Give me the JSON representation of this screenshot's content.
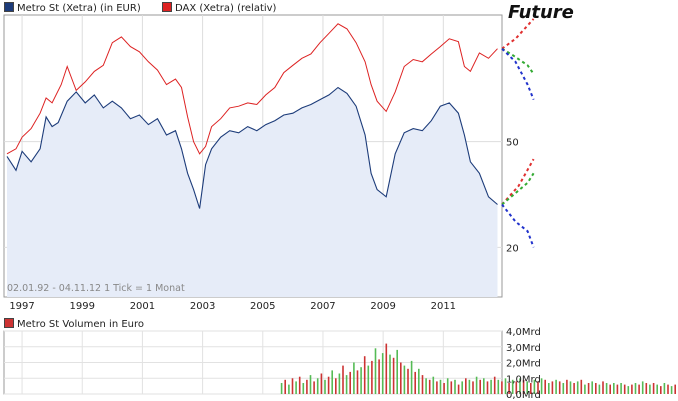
{
  "annotation": "Future",
  "chart_data": [
    {
      "type": "line",
      "title": "",
      "series": [
        {
          "name": "Metro St (Xetra) (in EUR)",
          "color": "#1d3c7a",
          "points": [
            [
              1996.5,
              44
            ],
            [
              1996.8,
              39
            ],
            [
              1997.0,
              46
            ],
            [
              1997.3,
              42
            ],
            [
              1997.6,
              47
            ],
            [
              1997.8,
              62
            ],
            [
              1998.0,
              57
            ],
            [
              1998.2,
              59
            ],
            [
              1998.5,
              71
            ],
            [
              1998.8,
              77
            ],
            [
              1999.1,
              70
            ],
            [
              1999.4,
              75
            ],
            [
              1999.7,
              67
            ],
            [
              2000.0,
              71
            ],
            [
              2000.3,
              67
            ],
            [
              2000.6,
              61
            ],
            [
              2000.9,
              63
            ],
            [
              2001.2,
              58
            ],
            [
              2001.5,
              61
            ],
            [
              2001.8,
              53
            ],
            [
              2002.1,
              55
            ],
            [
              2002.3,
              47
            ],
            [
              2002.5,
              38
            ],
            [
              2002.7,
              33
            ],
            [
              2002.9,
              28
            ],
            [
              2003.1,
              41
            ],
            [
              2003.3,
              47
            ],
            [
              2003.6,
              52
            ],
            [
              2003.9,
              55
            ],
            [
              2004.2,
              54
            ],
            [
              2004.5,
              57
            ],
            [
              2004.8,
              55
            ],
            [
              2005.1,
              58
            ],
            [
              2005.4,
              60
            ],
            [
              2005.7,
              63
            ],
            [
              2006.0,
              64
            ],
            [
              2006.3,
              67
            ],
            [
              2006.6,
              69
            ],
            [
              2006.9,
              72
            ],
            [
              2007.2,
              75
            ],
            [
              2007.5,
              80
            ],
            [
              2007.8,
              76
            ],
            [
              2008.1,
              68
            ],
            [
              2008.4,
              53
            ],
            [
              2008.6,
              38
            ],
            [
              2008.8,
              33
            ],
            [
              2009.1,
              31
            ],
            [
              2009.4,
              45
            ],
            [
              2009.7,
              54
            ],
            [
              2010.0,
              56
            ],
            [
              2010.3,
              55
            ],
            [
              2010.6,
              60
            ],
            [
              2010.9,
              68
            ],
            [
              2011.2,
              70
            ],
            [
              2011.5,
              64
            ],
            [
              2011.7,
              53
            ],
            [
              2011.9,
              42
            ],
            [
              2012.2,
              38
            ],
            [
              2012.5,
              31
            ],
            [
              2012.8,
              29
            ]
          ]
        },
        {
          "name": "DAX (Xetra) (relativ)",
          "color": "#dd2222",
          "points": [
            [
              1996.5,
              45
            ],
            [
              1996.8,
              47
            ],
            [
              1997.0,
              52
            ],
            [
              1997.3,
              56
            ],
            [
              1997.6,
              64
            ],
            [
              1997.8,
              73
            ],
            [
              1998.0,
              70
            ],
            [
              1998.3,
              82
            ],
            [
              1998.5,
              96
            ],
            [
              1998.8,
              78
            ],
            [
              1999.1,
              84
            ],
            [
              1999.4,
              92
            ],
            [
              1999.7,
              97
            ],
            [
              2000.0,
              118
            ],
            [
              2000.3,
              124
            ],
            [
              2000.6,
              114
            ],
            [
              2000.9,
              109
            ],
            [
              2001.2,
              100
            ],
            [
              2001.5,
              93
            ],
            [
              2001.8,
              82
            ],
            [
              2002.1,
              86
            ],
            [
              2002.3,
              80
            ],
            [
              2002.5,
              62
            ],
            [
              2002.7,
              50
            ],
            [
              2002.9,
              45
            ],
            [
              2003.1,
              48
            ],
            [
              2003.3,
              57
            ],
            [
              2003.6,
              61
            ],
            [
              2003.9,
              67
            ],
            [
              2004.2,
              68
            ],
            [
              2004.5,
              70
            ],
            [
              2004.8,
              69
            ],
            [
              2005.1,
              75
            ],
            [
              2005.4,
              80
            ],
            [
              2005.7,
              91
            ],
            [
              2006.0,
              97
            ],
            [
              2006.3,
              103
            ],
            [
              2006.6,
              107
            ],
            [
              2006.9,
              118
            ],
            [
              2007.2,
              128
            ],
            [
              2007.5,
              139
            ],
            [
              2007.8,
              133
            ],
            [
              2008.1,
              118
            ],
            [
              2008.4,
              100
            ],
            [
              2008.6,
              82
            ],
            [
              2008.8,
              71
            ],
            [
              2009.1,
              65
            ],
            [
              2009.4,
              77
            ],
            [
              2009.7,
              96
            ],
            [
              2010.0,
              102
            ],
            [
              2010.3,
              100
            ],
            [
              2010.6,
              107
            ],
            [
              2010.9,
              114
            ],
            [
              2011.2,
              122
            ],
            [
              2011.5,
              119
            ],
            [
              2011.7,
              96
            ],
            [
              2011.9,
              92
            ],
            [
              2012.2,
              108
            ],
            [
              2012.5,
              103
            ],
            [
              2012.8,
              112
            ]
          ]
        }
      ],
      "x_ticks": [
        "1997",
        "1999",
        "2001",
        "2003",
        "2005",
        "2007",
        "2009",
        "2011"
      ],
      "x_tick_values": [
        1997,
        1999,
        2001,
        2003,
        2005,
        2007,
        2009,
        2011
      ],
      "y_ticks": [
        "50",
        "20"
      ],
      "y_tick_values": [
        50,
        20
      ],
      "y_scale": "log",
      "xlim": [
        1996.4,
        2012.95
      ],
      "ylim": [
        13,
        150
      ],
      "caption": "02.01.92 - 04.11.12   1 Tick = 1 Monat",
      "grid": true,
      "legend_position": "top-left",
      "future_scenarios": {
        "upper": {
          "red": [
            [
              2012.95,
              112
            ],
            [
              2013.4,
              122
            ],
            [
              2014.0,
              145
            ]
          ],
          "green": [
            [
              2012.95,
              112
            ],
            [
              2013.3,
              106
            ],
            [
              2013.8,
              97
            ],
            [
              2014.0,
              90
            ]
          ],
          "blue": [
            [
              2012.95,
              112
            ],
            [
              2013.4,
              100
            ],
            [
              2013.8,
              82
            ],
            [
              2014.0,
              72
            ]
          ]
        },
        "lower": {
          "red": [
            [
              2012.95,
              29
            ],
            [
              2013.5,
              34
            ],
            [
              2014.0,
              43
            ]
          ],
          "green": [
            [
              2012.95,
              29
            ],
            [
              2013.4,
              32
            ],
            [
              2013.8,
              35
            ],
            [
              2014.0,
              38
            ]
          ],
          "blue": [
            [
              2012.95,
              29
            ],
            [
              2013.4,
              25
            ],
            [
              2013.8,
              23
            ],
            [
              2014.0,
              20
            ]
          ]
        }
      }
    },
    {
      "type": "bar",
      "title": "Metro St Volumen in Euro",
      "color": "#cc3333",
      "alt_color": "#55bb55",
      "y_ticks": [
        "4,0Mrd",
        "3,0Mrd",
        "2,0Mrd",
        "1,0Mrd",
        "0,0Mrd"
      ],
      "y_tick_values": [
        4,
        3,
        2,
        1,
        0
      ],
      "ylim": [
        0,
        4
      ],
      "unit": "Mrd Euro",
      "xlim": [
        1996.4,
        2012.95
      ],
      "x_start": 2005.6,
      "x_step": 0.12,
      "values": [
        0.7,
        0.9,
        0.6,
        1.0,
        0.8,
        1.1,
        0.7,
        0.9,
        1.2,
        0.8,
        1.0,
        1.3,
        0.9,
        1.1,
        1.5,
        1.0,
        1.3,
        1.8,
        1.2,
        1.4,
        2.0,
        1.5,
        1.7,
        2.4,
        1.8,
        2.1,
        2.9,
        2.2,
        2.6,
        3.2,
        2.5,
        2.3,
        2.8,
        2.0,
        1.8,
        1.6,
        2.1,
        1.4,
        1.6,
        1.2,
        1.0,
        0.9,
        1.1,
        0.8,
        0.9,
        0.7,
        1.0,
        0.8,
        0.9,
        0.6,
        0.8,
        1.0,
        0.9,
        0.8,
        1.1,
        0.9,
        1.0,
        0.8,
        0.9,
        1.1,
        0.9,
        0.8,
        1.0,
        0.7,
        0.9,
        0.8,
        1.0,
        0.9,
        0.8,
        0.7,
        0.9,
        0.8,
        1.0,
        0.9,
        0.7,
        0.8,
        0.9,
        0.8,
        0.7,
        0.9,
        0.8,
        0.7,
        0.8,
        0.9,
        0.6,
        0.7,
        0.8,
        0.7,
        0.6,
        0.8,
        0.7,
        0.6,
        0.7,
        0.6,
        0.7,
        0.6,
        0.5,
        0.6,
        0.7,
        0.6,
        0.8,
        0.7,
        0.6,
        0.7,
        0.6,
        0.5,
        0.7,
        0.6,
        0.5,
        0.6,
        0.7,
        0.5,
        0.6,
        0.5,
        0.6,
        0.7,
        0.6,
        0.5,
        0.6,
        0.7
      ]
    }
  ]
}
